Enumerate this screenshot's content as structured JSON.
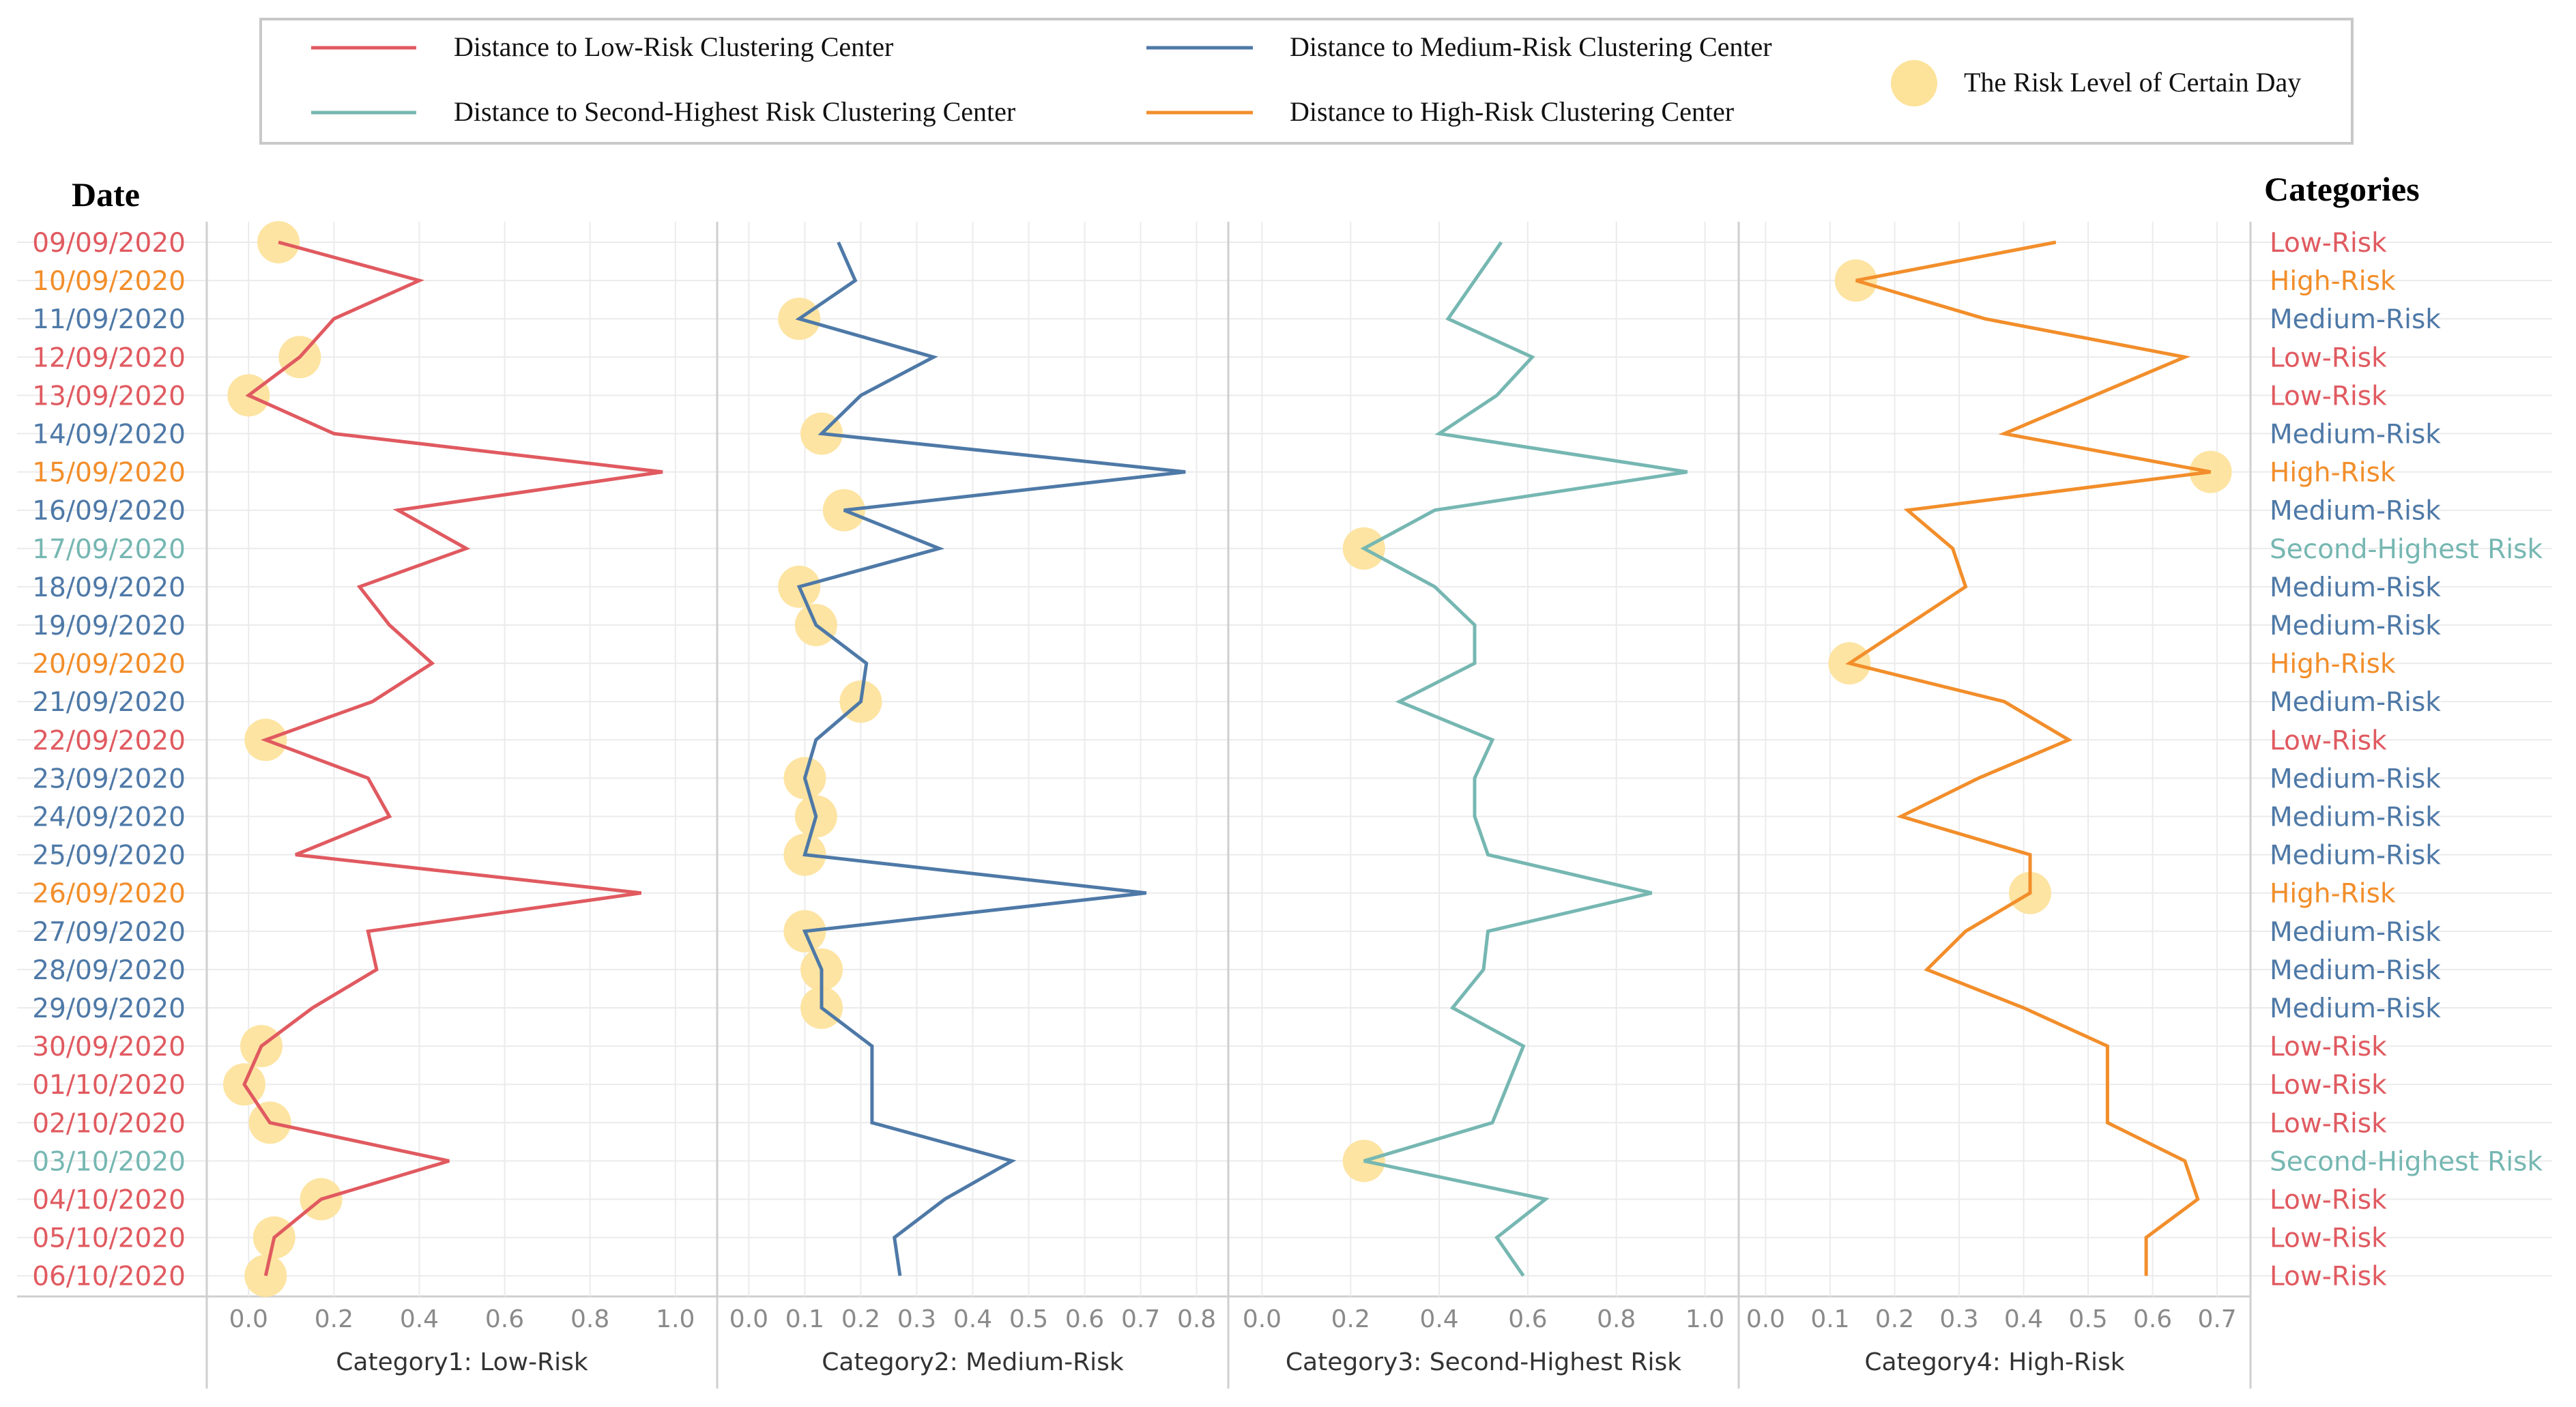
{
  "legend": {
    "items": [
      {
        "label": "Distance to Low-Risk Clustering Center",
        "color": "#e05a60",
        "kind": "line"
      },
      {
        "label": "Distance to Medium-Risk Clustering Center",
        "color": "#4e79a7",
        "kind": "line"
      },
      {
        "label": "Distance to Second-Highest Risk Clustering Center",
        "color": "#76b7b2",
        "kind": "line"
      },
      {
        "label": "Distance to High-Risk Clustering Center",
        "color": "#f28e2b",
        "kind": "line"
      },
      {
        "label": "The Risk Level of Certain Day",
        "color": "#fde29a",
        "kind": "dot"
      }
    ]
  },
  "headers": {
    "date": "Date",
    "categories": "Categories"
  },
  "colors": {
    "Low-Risk": "#e05a60",
    "Medium-Risk": "#4e79a7",
    "Second-Highest Risk": "#76b7b2",
    "High-Risk": "#f28e2b",
    "grid": "#ebebeb",
    "divider": "#cfcfcf",
    "tick": "#8a8a8a",
    "dot": "#fde29a"
  },
  "chart_data": {
    "type": "line",
    "orientation": "vertical-panels",
    "dates": [
      "09/09/2020",
      "10/09/2020",
      "11/09/2020",
      "12/09/2020",
      "13/09/2020",
      "14/09/2020",
      "15/09/2020",
      "16/09/2020",
      "17/09/2020",
      "18/09/2020",
      "19/09/2020",
      "20/09/2020",
      "21/09/2020",
      "22/09/2020",
      "23/09/2020",
      "24/09/2020",
      "25/09/2020",
      "26/09/2020",
      "27/09/2020",
      "28/09/2020",
      "29/09/2020",
      "30/09/2020",
      "01/10/2020",
      "02/10/2020",
      "03/10/2020",
      "04/10/2020",
      "05/10/2020",
      "06/10/2020"
    ],
    "categories": [
      "Low-Risk",
      "High-Risk",
      "Medium-Risk",
      "Low-Risk",
      "Low-Risk",
      "Medium-Risk",
      "High-Risk",
      "Medium-Risk",
      "Second-Highest Risk",
      "Medium-Risk",
      "Medium-Risk",
      "High-Risk",
      "Medium-Risk",
      "Low-Risk",
      "Medium-Risk",
      "Medium-Risk",
      "Medium-Risk",
      "High-Risk",
      "Medium-Risk",
      "Medium-Risk",
      "Medium-Risk",
      "Low-Risk",
      "Low-Risk",
      "Low-Risk",
      "Second-Highest Risk",
      "Low-Risk",
      "Low-Risk",
      "Low-Risk"
    ],
    "panels": [
      {
        "name": "Category1: Low-Risk",
        "series": "Low-Risk",
        "xlim": [
          -0.05,
          1.05
        ],
        "ticks": [
          "0.0",
          "0.2",
          "0.4",
          "0.6",
          "0.8",
          "1.0"
        ],
        "tick_values": [
          0,
          0.2,
          0.4,
          0.6,
          0.8,
          1.0
        ],
        "values": [
          0.07,
          0.4,
          0.2,
          0.12,
          0.0,
          0.2,
          0.97,
          0.35,
          0.51,
          0.26,
          0.33,
          0.43,
          0.29,
          0.04,
          0.28,
          0.33,
          0.11,
          0.92,
          0.28,
          0.3,
          0.15,
          0.03,
          -0.01,
          0.05,
          0.47,
          0.17,
          0.06,
          0.04
        ],
        "dots": [
          true,
          false,
          false,
          true,
          true,
          false,
          false,
          false,
          false,
          false,
          false,
          false,
          false,
          true,
          false,
          false,
          false,
          false,
          false,
          false,
          false,
          true,
          true,
          true,
          false,
          true,
          true,
          true
        ]
      },
      {
        "name": "Category2: Medium-Risk",
        "series": "Medium-Risk",
        "xlim": [
          -0.02,
          0.82
        ],
        "ticks": [
          "0.0",
          "0.1",
          "0.2",
          "0.3",
          "0.4",
          "0.5",
          "0.6",
          "0.7",
          "0.8"
        ],
        "tick_values": [
          0.0,
          0.1,
          0.2,
          0.3,
          0.4,
          0.5,
          0.6,
          0.7,
          0.8
        ],
        "values": [
          0.16,
          0.19,
          0.09,
          0.33,
          0.2,
          0.13,
          0.78,
          0.17,
          0.34,
          0.09,
          0.12,
          0.21,
          0.2,
          0.12,
          0.1,
          0.12,
          0.1,
          0.71,
          0.1,
          0.13,
          0.13,
          0.22,
          0.22,
          0.22,
          0.47,
          0.35,
          0.26,
          0.27
        ],
        "dots": [
          false,
          false,
          true,
          false,
          false,
          true,
          false,
          true,
          false,
          true,
          true,
          false,
          true,
          false,
          true,
          true,
          true,
          false,
          true,
          true,
          true,
          false,
          false,
          false,
          false,
          false,
          false,
          false
        ]
      },
      {
        "name": "Category3: Second-Highest Risk",
        "series": "Second-Highest Risk",
        "xlim": [
          -0.03,
          1.03
        ],
        "ticks": [
          "0.0",
          "0.2",
          "0.4",
          "0.6",
          "0.8",
          "1.0"
        ],
        "tick_values": [
          0,
          0.2,
          0.4,
          0.6,
          0.8,
          1.0
        ],
        "values": [
          0.54,
          0.42,
          0.61,
          0.53,
          0.4,
          0.96,
          0.39,
          0.23,
          0.39,
          0.48,
          0.48,
          0.31,
          0.52,
          0.48,
          0.48,
          0.51,
          0.88,
          0.51,
          0.5,
          0.43,
          0.59,
          0.52,
          0.23,
          0.64,
          0.53,
          0.59
        ],
        "dots": [
          false,
          false,
          false,
          false,
          false,
          false,
          false,
          true,
          false,
          false,
          false,
          false,
          false,
          false,
          false,
          false,
          false,
          false,
          false,
          false,
          false,
          false,
          true,
          false,
          false,
          false
        ],
        "offset": 0,
        "row_index": [
          0,
          2,
          3,
          4,
          5,
          6,
          7,
          8,
          9,
          10,
          11,
          12,
          13,
          14,
          15,
          16,
          17,
          18,
          19,
          20,
          21,
          23,
          24,
          25,
          26,
          27
        ]
      },
      {
        "name": "Category4: High-Risk",
        "series": "High-Risk",
        "xlim": [
          -0.01,
          0.72
        ],
        "ticks": [
          "0.0",
          "0.1",
          "0.2",
          "0.3",
          "0.4",
          "0.5",
          "0.6",
          "0.7"
        ],
        "tick_values": [
          0.0,
          0.1,
          0.2,
          0.3,
          0.4,
          0.5,
          0.6,
          0.7
        ],
        "values": [
          0.45,
          0.14,
          0.34,
          0.65,
          0.51,
          0.37,
          0.69,
          0.22,
          0.29,
          0.31,
          0.22,
          0.13,
          0.37,
          0.47,
          0.33,
          0.21,
          0.41,
          0.41,
          0.31,
          0.25,
          0.4,
          0.53,
          0.53,
          0.53,
          0.65,
          0.67,
          0.59,
          0.59
        ],
        "dots": [
          false,
          true,
          false,
          false,
          false,
          false,
          true,
          false,
          false,
          false,
          false,
          true,
          false,
          false,
          false,
          false,
          false,
          true,
          false,
          false,
          false,
          false,
          false,
          false,
          false,
          false,
          false,
          false
        ]
      }
    ]
  }
}
